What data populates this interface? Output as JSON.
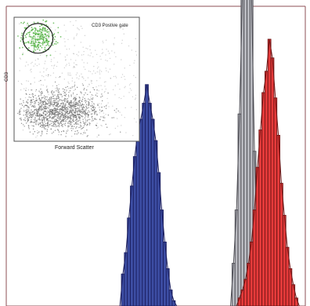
{
  "chart_data": [
    {
      "type": "histogram",
      "title": "",
      "xlabel": "",
      "ylabel": "",
      "grid": false,
      "legend": "none",
      "frame_color": "#8e4f55",
      "series": [
        {
          "color": "#3d4ea4",
          "edge_color": "#1b1f60",
          "bins": [
            {
              "x": 0.38,
              "y": 0.0
            },
            {
              "x": 0.39,
              "y": 0.12
            },
            {
              "x": 0.4,
              "y": 0.2
            },
            {
              "x": 0.41,
              "y": 0.33
            },
            {
              "x": 0.42,
              "y": 0.45
            },
            {
              "x": 0.43,
              "y": 0.56
            },
            {
              "x": 0.44,
              "y": 0.66
            },
            {
              "x": 0.45,
              "y": 0.7
            },
            {
              "x": 0.46,
              "y": 0.76
            },
            {
              "x": 0.47,
              "y": 0.83
            },
            {
              "x": 0.48,
              "y": 0.76
            },
            {
              "x": 0.49,
              "y": 0.7
            },
            {
              "x": 0.5,
              "y": 0.62
            },
            {
              "x": 0.51,
              "y": 0.5
            },
            {
              "x": 0.52,
              "y": 0.36
            },
            {
              "x": 0.53,
              "y": 0.24
            },
            {
              "x": 0.54,
              "y": 0.14
            },
            {
              "x": 0.55,
              "y": 0.06
            },
            {
              "x": 0.56,
              "y": 0.02
            },
            {
              "x": 0.57,
              "y": 0.0
            }
          ]
        },
        {
          "color": "#b9bac0",
          "edge_color": "#4b4b52",
          "bins": [
            {
              "x": 0.75,
              "y": 0.0
            },
            {
              "x": 0.76,
              "y": 0.16
            },
            {
              "x": 0.77,
              "y": 0.36
            },
            {
              "x": 0.78,
              "y": 0.72
            },
            {
              "x": 0.79,
              "y": 1.18
            },
            {
              "x": 0.8,
              "y": 1.3
            },
            {
              "x": 0.81,
              "y": 1.3
            },
            {
              "x": 0.82,
              "y": 1.18
            },
            {
              "x": 0.83,
              "y": 0.58
            },
            {
              "x": 0.84,
              "y": 0.2
            },
            {
              "x": 0.85,
              "y": 0.0
            }
          ]
        },
        {
          "color": "#e63b3b",
          "edge_color": "#6f1414",
          "bins": [
            {
              "x": 0.77,
              "y": 0.0
            },
            {
              "x": 0.78,
              "y": 0.03
            },
            {
              "x": 0.79,
              "y": 0.06
            },
            {
              "x": 0.8,
              "y": 0.1
            },
            {
              "x": 0.81,
              "y": 0.16
            },
            {
              "x": 0.82,
              "y": 0.24
            },
            {
              "x": 0.83,
              "y": 0.36
            },
            {
              "x": 0.84,
              "y": 0.52
            },
            {
              "x": 0.85,
              "y": 0.66
            },
            {
              "x": 0.86,
              "y": 0.8
            },
            {
              "x": 0.87,
              "y": 0.88
            },
            {
              "x": 0.88,
              "y": 1.0
            },
            {
              "x": 0.89,
              "y": 0.93
            },
            {
              "x": 0.9,
              "y": 0.78
            },
            {
              "x": 0.91,
              "y": 0.64
            },
            {
              "x": 0.92,
              "y": 0.46
            },
            {
              "x": 0.93,
              "y": 0.34
            },
            {
              "x": 0.94,
              "y": 0.22
            },
            {
              "x": 0.95,
              "y": 0.14
            },
            {
              "x": 0.96,
              "y": 0.08
            },
            {
              "x": 0.97,
              "y": 0.03
            },
            {
              "x": 0.98,
              "y": 0.0
            }
          ]
        }
      ]
    },
    {
      "type": "scatter",
      "title": "",
      "xlabel": "Forward Scatter",
      "ylabel": "CD3",
      "gate_label": "CD3 Postive gate",
      "grid": false,
      "legend": "none",
      "point_colors": {
        "gated": "#4eb03e",
        "ungated": "#7d7d7d"
      },
      "gate": {
        "shape": "ellipse",
        "cx": 0.19,
        "cy": 0.83,
        "rx": 0.12,
        "ry": 0.12,
        "stroke": "#222222"
      },
      "clusters": [
        {
          "name": "gated",
          "color": "#4eb03e",
          "center": [
            0.19,
            0.84
          ],
          "spread": [
            0.07,
            0.06
          ],
          "count": 260
        },
        {
          "name": "dense",
          "color": "#6e6e6e",
          "center": [
            0.35,
            0.24
          ],
          "spread": [
            0.17,
            0.08
          ],
          "count": 1300
        },
        {
          "name": "diffuse",
          "color": "#9c9c9c",
          "center": [
            0.48,
            0.48
          ],
          "spread": [
            0.38,
            0.28
          ],
          "count": 650
        }
      ]
    }
  ]
}
